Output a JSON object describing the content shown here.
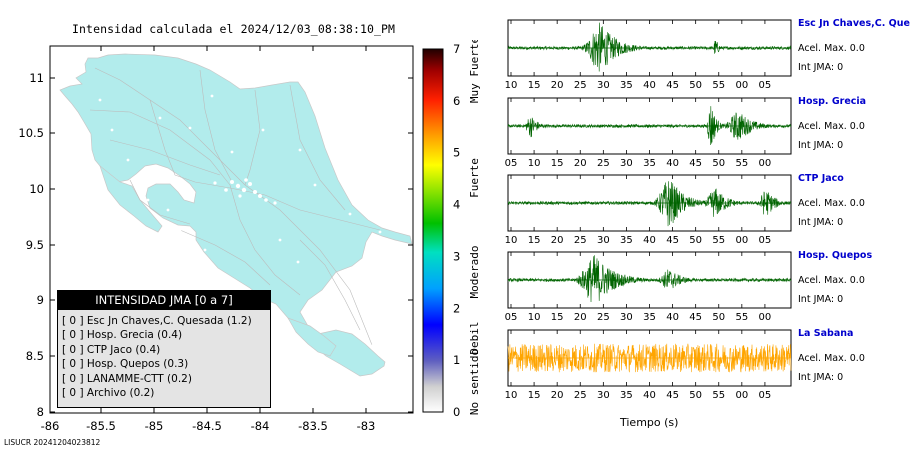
{
  "map": {
    "title": "Intensidad calculada el 2024/12/03_08:38:10_PM",
    "lon_ticks": [
      "-86",
      "-85.5",
      "-85",
      "-84.5",
      "-84",
      "-83.5",
      "-83"
    ],
    "lat_ticks": [
      "11",
      "10.5",
      "10",
      "9.5",
      "9",
      "8.5",
      "8"
    ],
    "land_color": "#b2ecec",
    "footer_id": "LISUCR 20241204023812"
  },
  "legend": {
    "title": "INTENSIDAD JMA [0 a 7]",
    "items": [
      "[ 0 ]  Esc Jn Chaves,C. Quesada (1.2)",
      "[ 0 ]  Hosp. Grecia (0.4)",
      "[ 0 ]  CTP Jaco (0.4)",
      "[ 0 ]  Hosp. Quepos (0.3)",
      "[ 0 ]  LANAMME-CTT (0.2)",
      "[ 0 ]  Archivo (0.2)"
    ]
  },
  "colorbar": {
    "ticks": [
      "7",
      "6",
      "5",
      "4",
      "3",
      "2",
      "1",
      "0"
    ],
    "categories": [
      "Muy Fuerte",
      "Fuerte",
      "Moderado",
      "Debil",
      "No sentido"
    ]
  },
  "chart_data": {
    "type": "line",
    "xlabel": "Tiempo (s)",
    "series": [
      {
        "name": "Esc Jn Chaves,C. Ques",
        "acc_label": "Acel. Max. 0.0",
        "int_label": "Int JMA: 0",
        "color": "#006400",
        "ticks": [
          "10",
          "15",
          "20",
          "25",
          "30",
          "35",
          "40",
          "45",
          "50",
          "55",
          "00",
          "05"
        ],
        "tick_start": 10,
        "bursts": [
          {
            "t": 30,
            "amp": 1.0,
            "width": 3.5
          },
          {
            "t": 55,
            "amp": 0.35,
            "width": 0.8
          }
        ]
      },
      {
        "name": "Hosp. Grecia",
        "acc_label": "Acel. Max. 0.0",
        "int_label": "Int JMA: 0",
        "color": "#006400",
        "ticks": [
          "05",
          "10",
          "15",
          "20",
          "25",
          "30",
          "35",
          "40",
          "45",
          "50",
          "55",
          "00"
        ],
        "tick_start": 5,
        "bursts": [
          {
            "t": 49,
            "amp": 1.0,
            "width": 1.0
          },
          {
            "t": 55,
            "amp": 0.6,
            "width": 3
          },
          {
            "t": 10,
            "amp": 0.45,
            "width": 1.5
          }
        ]
      },
      {
        "name": "CTP Jaco",
        "acc_label": "Acel. Max. 0.0",
        "int_label": "Int JMA: 0",
        "color": "#006400",
        "ticks": [
          "10",
          "15",
          "20",
          "25",
          "30",
          "35",
          "40",
          "45",
          "50",
          "55",
          "00",
          "05"
        ],
        "tick_start": 10,
        "bursts": [
          {
            "t": 45,
            "amp": 1.0,
            "width": 3
          },
          {
            "t": 55,
            "amp": 0.6,
            "width": 2.5
          },
          {
            "t": 66,
            "amp": 0.55,
            "width": 2
          }
        ]
      },
      {
        "name": "Hosp. Quepos",
        "acc_label": "Acel. Max. 0.0",
        "int_label": "Int JMA: 0",
        "color": "#006400",
        "ticks": [
          "05",
          "10",
          "15",
          "20",
          "25",
          "30",
          "35",
          "40",
          "45",
          "50",
          "55",
          "00"
        ],
        "tick_start": 5,
        "bursts": [
          {
            "t": 24,
            "amp": 1.0,
            "width": 4
          },
          {
            "t": 40,
            "amp": 0.45,
            "width": 2.5
          }
        ]
      },
      {
        "name": "La Sabana",
        "acc_label": "Acel. Max. 0.0",
        "int_label": "Int JMA: 0",
        "color": "#ffa500",
        "ticks": [
          "10",
          "15",
          "20",
          "25",
          "30",
          "35",
          "40",
          "45",
          "50",
          "55",
          "00",
          "05"
        ],
        "tick_start": 10,
        "noise": 0.55,
        "bursts": [
          {
            "t": 27,
            "amp": 0.5,
            "width": 4
          },
          {
            "t": 43,
            "amp": 0.5,
            "width": 3
          }
        ]
      }
    ]
  }
}
